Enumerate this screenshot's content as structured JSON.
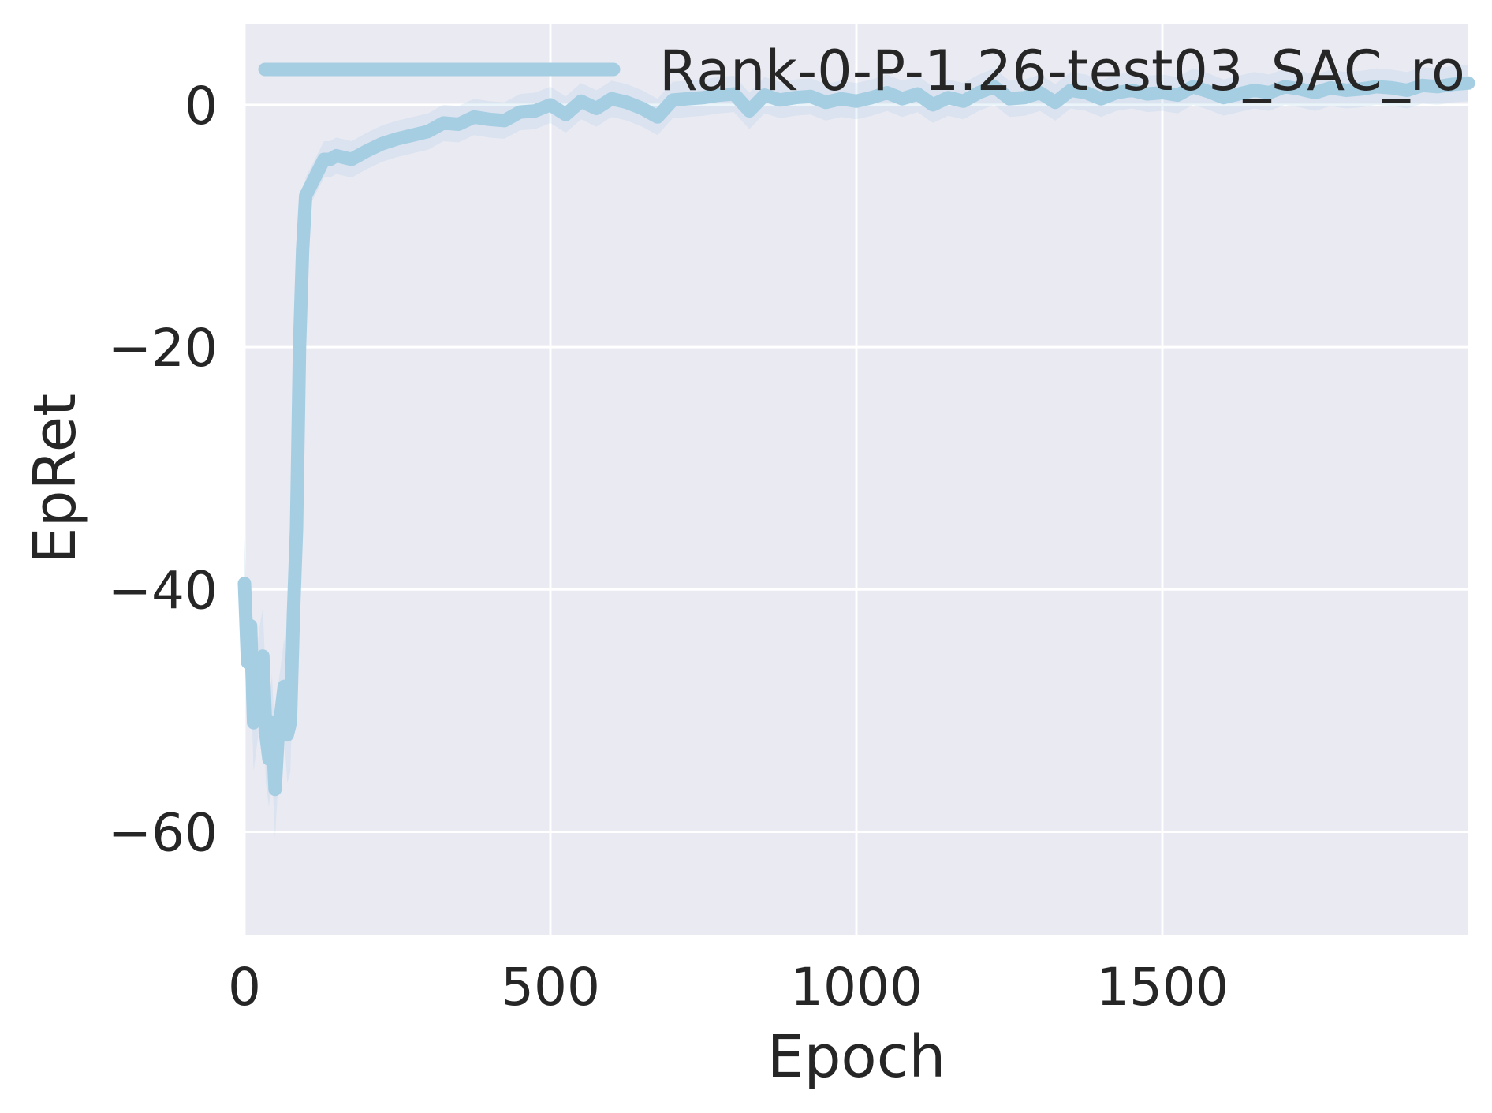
{
  "chart_data": {
    "type": "line",
    "title": "",
    "xlabel": "Epoch",
    "ylabel": "EpRet",
    "xlim": [
      0,
      2000
    ],
    "ylim": [
      -68.5,
      6.7
    ],
    "xticks": [
      0,
      500,
      1000,
      1500
    ],
    "xtick_labels": [
      "0",
      "500",
      "1000",
      "1500"
    ],
    "yticks": [
      -60,
      -40,
      -20,
      0
    ],
    "ytick_labels": [
      "−60",
      "−40",
      "−20",
      "0"
    ],
    "grid": true,
    "legend": "top-left",
    "background": "#eaeaf2",
    "grid_color": "#ffffff",
    "series": [
      {
        "name": "Rank-0-P-1.26-test03_SAC_ro",
        "color": "#a6cee3",
        "x": [
          0,
          5,
          10,
          15,
          20,
          25,
          30,
          35,
          40,
          45,
          50,
          55,
          60,
          65,
          70,
          75,
          80,
          85,
          90,
          95,
          100,
          105,
          110,
          120,
          130,
          140,
          150,
          175,
          200,
          225,
          250,
          275,
          300,
          325,
          350,
          375,
          400,
          425,
          450,
          475,
          500,
          525,
          550,
          575,
          600,
          625,
          650,
          675,
          700,
          725,
          750,
          775,
          800,
          825,
          850,
          875,
          900,
          925,
          950,
          975,
          1000,
          1025,
          1050,
          1075,
          1100,
          1125,
          1150,
          1175,
          1200,
          1225,
          1250,
          1275,
          1300,
          1325,
          1350,
          1375,
          1400,
          1425,
          1450,
          1475,
          1500,
          1525,
          1550,
          1575,
          1600,
          1625,
          1650,
          1675,
          1700,
          1725,
          1750,
          1775,
          1800,
          1825,
          1850,
          1875,
          1900,
          1925,
          1950,
          1975,
          2000
        ],
        "y": [
          -39.5,
          -46,
          -43,
          -51,
          -49,
          -47,
          -45.5,
          -52,
          -54,
          -51,
          -56.5,
          -52,
          -50,
          -48,
          -52,
          -51,
          -42,
          -35,
          -20,
          -12,
          -7.5,
          -7,
          -6.5,
          -5.5,
          -4.5,
          -4.5,
          -4.2,
          -4.5,
          -3.8,
          -3.2,
          -2.8,
          -2.5,
          -2.2,
          -1.5,
          -1.6,
          -1.0,
          -1.2,
          -1.3,
          -0.6,
          -0.5,
          0.0,
          -0.8,
          0.3,
          -0.3,
          0.5,
          0.2,
          -0.3,
          -1.0,
          0.4,
          0.5,
          0.6,
          0.8,
          0.9,
          -0.5,
          0.8,
          0.4,
          0.6,
          0.7,
          0.2,
          0.5,
          0.3,
          0.6,
          1.0,
          0.5,
          0.9,
          0.0,
          0.6,
          0.3,
          1.0,
          1.5,
          0.5,
          0.6,
          1.0,
          0.2,
          1.2,
          1.0,
          0.5,
          1.0,
          1.2,
          0.9,
          1.0,
          0.8,
          1.5,
          1.1,
          0.6,
          0.9,
          1.2,
          1.0,
          1.5,
          1.3,
          1.0,
          1.4,
          1.2,
          1.3,
          1.5,
          1.4,
          1.2,
          1.6,
          1.5,
          1.7,
          1.8
        ]
      }
    ]
  }
}
